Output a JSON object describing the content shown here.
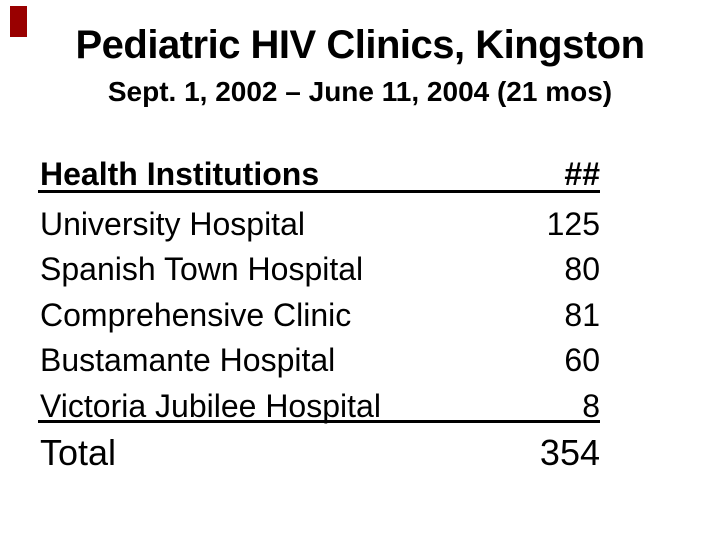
{
  "slide": {
    "title": "Pediatric HIV Clinics, Kingston",
    "subtitle": "Sept. 1, 2002 – June 11, 2004 (21 mos)",
    "colors": {
      "background": "#ffffff",
      "text": "#000000",
      "accent_mark": "#990000"
    }
  },
  "chart_data": {
    "type": "table",
    "title": "Pediatric HIV Clinics, Kingston",
    "subtitle": "Sept. 1, 2002 – June 11, 2004 (21 mos)",
    "columns": [
      "Health Institutions",
      "##"
    ],
    "rows": [
      {
        "name": "University Hospital",
        "count": "125"
      },
      {
        "name": "Spanish Town Hospital",
        "count": "80"
      },
      {
        "name": "Comprehensive Clinic",
        "count": "81"
      },
      {
        "name": "Bustamante Hospital",
        "count": "60"
      },
      {
        "name": "Victoria Jubilee Hospital",
        "count": "8"
      }
    ],
    "total": {
      "name": "Total",
      "count": "354"
    },
    "header": {
      "name": "Health Institutions",
      "count": "##"
    }
  }
}
